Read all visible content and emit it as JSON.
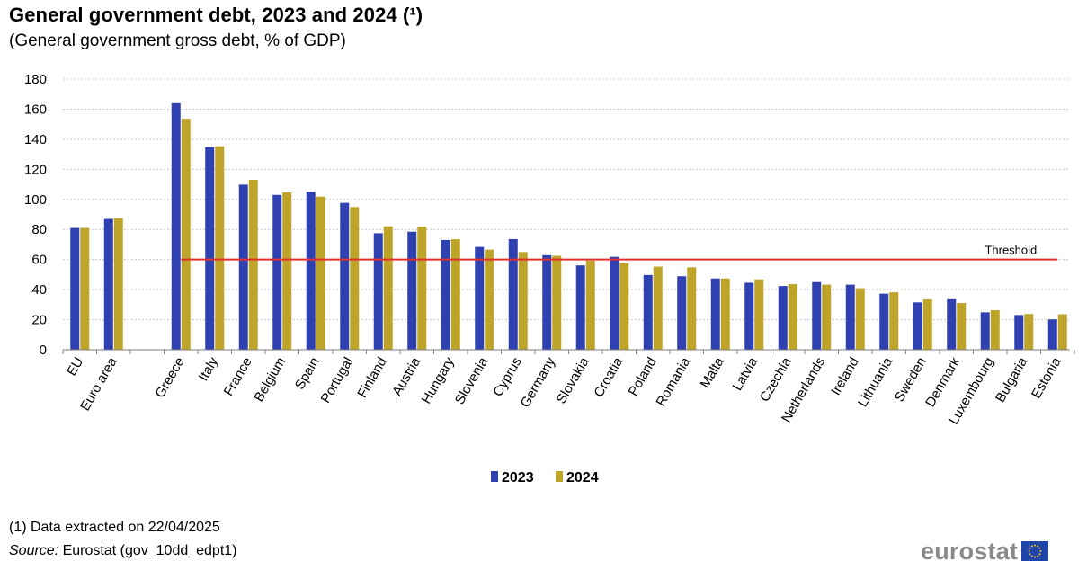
{
  "header": {
    "title": "General government debt, 2023 and 2024 (¹)",
    "subtitle": "(General government  gross debt, % of GDP)"
  },
  "footer": {
    "footnote": "(1) Data extracted  on 22/04/2025",
    "source_label": "Source:",
    "source_text": " Eurostat (gov_10dd_edpt1)",
    "logo_text": "eurostat",
    "logo_icon": "eu-flag-icon"
  },
  "colors": {
    "series_2023": "#2f40b0",
    "series_2024": "#bfa42a",
    "threshold": "#e0312d",
    "grid": "#c8c8c8",
    "axis": "#7f7f7f"
  },
  "chart_data": {
    "type": "bar",
    "title": "General government debt, 2023 and 2024 (¹)",
    "subtitle": "(General government  gross debt, % of GDP)",
    "xlabel": "",
    "ylabel": "",
    "ylim": [
      0,
      180
    ],
    "yticks": [
      0,
      20,
      40,
      60,
      80,
      100,
      120,
      140,
      160,
      180
    ],
    "grid": true,
    "legend_position": "bottom-center",
    "categories": [
      "EU",
      "Euro area",
      "",
      "Greece",
      "Italy",
      "France",
      "Belgium",
      "Spain",
      "Portugal",
      "Finland",
      "Austria",
      "Hungary",
      "Slovenia",
      "Cyprus",
      "Germany",
      "Slovakia",
      "Croatia",
      "Poland",
      "Romania",
      "Malta",
      "Latvia",
      "Czechia",
      "Netherlands",
      "Ireland",
      "Lithuania",
      "Sweden",
      "Denmark",
      "Luxembourg",
      "Bulgaria",
      "Estonia"
    ],
    "series": [
      {
        "name": "2023",
        "values": [
          81,
          87,
          null,
          164,
          134.8,
          109.8,
          103,
          105,
          97.7,
          77.5,
          78.5,
          73,
          68.4,
          73.6,
          62.9,
          56.1,
          61.8,
          49.7,
          48.9,
          47.4,
          44.6,
          42.4,
          45,
          43.3,
          37.3,
          31.5,
          33.6,
          24.9,
          23.1,
          20.2
        ]
      },
      {
        "name": "2024",
        "values": [
          81,
          87.4,
          null,
          153.6,
          135.3,
          113,
          104.7,
          101.8,
          94.9,
          82.1,
          81.8,
          73.5,
          66.6,
          65,
          62.5,
          59.3,
          57.6,
          55.3,
          54.8,
          47.4,
          46.8,
          43.6,
          43.3,
          40.9,
          38.2,
          33.5,
          31.1,
          26.3,
          23.8,
          23.6
        ]
      }
    ],
    "threshold": {
      "label": "Threshold",
      "value": 60,
      "from_category": "Greece",
      "to_category": "Estonia"
    }
  }
}
